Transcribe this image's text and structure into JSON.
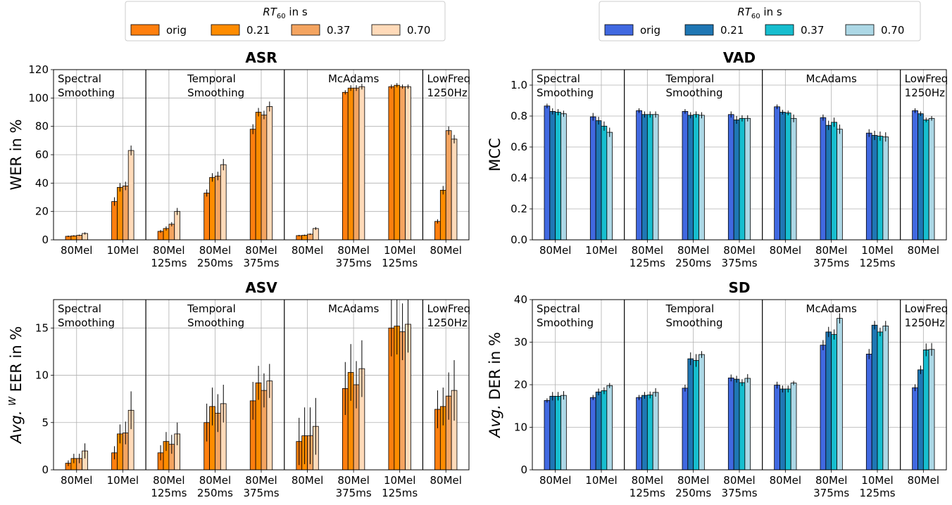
{
  "legends": [
    {
      "title": "RT60 in s",
      "title_main": "RT",
      "title_sub": "60",
      "title_rest": " in s",
      "labels": [
        "orig",
        "0.21",
        "0.37",
        "0.70"
      ],
      "colors": [
        "#ff7f0e",
        "#ff8c00",
        "#f4a460",
        "#ffdab9"
      ]
    },
    {
      "title": "RT60 in s",
      "title_main": "RT",
      "title_sub": "60",
      "title_rest": " in s",
      "labels": [
        "orig",
        "0.21",
        "0.37",
        "0.70"
      ],
      "colors": [
        "#4169e1",
        "#1f77b4",
        "#17becf",
        "#add8e6"
      ]
    }
  ],
  "categories": [
    [
      "80Mel"
    ],
    [
      "10Mel"
    ],
    [
      "80Mel",
      "125ms"
    ],
    [
      "80Mel",
      "250ms"
    ],
    [
      "80Mel",
      "375ms"
    ],
    [
      "80Mel"
    ],
    [
      "80Mel",
      "375ms"
    ],
    [
      "10Mel",
      "125ms"
    ],
    [
      "80Mel"
    ]
  ],
  "groups": [
    {
      "lines": [
        "Spectral",
        "Smoothing"
      ],
      "start": 0,
      "end": 1
    },
    {
      "lines": [
        "Temporal",
        "Smoothing"
      ],
      "start": 2,
      "end": 4
    },
    {
      "lines": [
        "McAdams"
      ],
      "start": 5,
      "end": 7
    },
    {
      "lines": [
        "LowFreq",
        "1250Hz"
      ],
      "start": 8,
      "end": 8
    }
  ],
  "chart_data": [
    {
      "type": "bar",
      "title": "ASR",
      "ylabel": "WER in %",
      "ylim": [
        0,
        120
      ],
      "yticks": [
        0,
        20,
        40,
        60,
        80,
        100,
        120
      ],
      "palette": 0,
      "grid": true,
      "series": [
        {
          "name": "orig",
          "values": [
            2.5,
            27,
            6,
            33,
            78,
            3,
            104,
            108,
            13
          ],
          "err": [
            0.5,
            3,
            1,
            2.5,
            3.5,
            0.5,
            1.5,
            1.5,
            1.5
          ]
        },
        {
          "name": "0.21",
          "values": [
            2.8,
            37,
            8,
            44,
            90,
            3.2,
            107,
            109,
            35
          ],
          "err": [
            0.5,
            3,
            1.5,
            3,
            3,
            0.5,
            2,
            1.5,
            3
          ]
        },
        {
          "name": "0.37",
          "values": [
            3.2,
            38,
            11,
            45,
            88,
            4,
            107,
            108,
            77
          ],
          "err": [
            0.5,
            3,
            1.5,
            3,
            3,
            0.5,
            2,
            1.5,
            3
          ]
        },
        {
          "name": "0.70",
          "values": [
            4.5,
            63,
            20,
            53,
            94,
            8,
            108,
            108,
            71
          ],
          "err": [
            0.8,
            3.5,
            2.5,
            4,
            3.5,
            1,
            2,
            1.5,
            3
          ]
        }
      ]
    },
    {
      "type": "bar",
      "title": "VAD",
      "ylabel": "MCC",
      "ylim": [
        0,
        1.1
      ],
      "yticks": [
        0.0,
        0.2,
        0.4,
        0.6,
        0.8,
        1.0
      ],
      "tick_decimals": 1,
      "palette": 1,
      "grid": true,
      "series": [
        {
          "name": "orig",
          "values": [
            0.865,
            0.795,
            0.835,
            0.83,
            0.81,
            0.86,
            0.79,
            0.69,
            0.835
          ],
          "err": [
            0.015,
            0.025,
            0.015,
            0.015,
            0.02,
            0.015,
            0.02,
            0.025,
            0.015
          ]
        },
        {
          "name": "0.21",
          "values": [
            0.83,
            0.77,
            0.81,
            0.805,
            0.775,
            0.825,
            0.74,
            0.675,
            0.815
          ],
          "err": [
            0.02,
            0.025,
            0.02,
            0.02,
            0.025,
            0.015,
            0.03,
            0.03,
            0.015
          ]
        },
        {
          "name": "0.37",
          "values": [
            0.825,
            0.735,
            0.81,
            0.81,
            0.785,
            0.82,
            0.76,
            0.67,
            0.775
          ],
          "err": [
            0.02,
            0.03,
            0.02,
            0.02,
            0.02,
            0.015,
            0.03,
            0.03,
            0.015
          ]
        },
        {
          "name": "0.70",
          "values": [
            0.815,
            0.695,
            0.81,
            0.805,
            0.785,
            0.785,
            0.715,
            0.665,
            0.785
          ],
          "err": [
            0.02,
            0.03,
            0.02,
            0.02,
            0.02,
            0.025,
            0.03,
            0.03,
            0.015
          ]
        }
      ]
    },
    {
      "type": "bar",
      "title": "ASV",
      "ylabel": "Avg. W EER in %",
      "ylabel_parts": [
        "Avg.",
        "W",
        " EER in %"
      ],
      "ylim": [
        0,
        18
      ],
      "yticks": [
        0,
        5,
        10,
        15
      ],
      "palette": 0,
      "grid": true,
      "series": [
        {
          "name": "orig",
          "values": [
            0.7,
            1.8,
            1.8,
            5.0,
            7.3,
            3.0,
            8.6,
            15.0,
            6.4
          ],
          "err": [
            0.3,
            0.7,
            0.8,
            2.0,
            2.0,
            2.5,
            2.8,
            3.0,
            2.0
          ]
        },
        {
          "name": "0.21",
          "values": [
            1.2,
            3.8,
            3.0,
            6.7,
            9.2,
            3.6,
            10.3,
            15.2,
            6.7
          ],
          "err": [
            0.5,
            1.0,
            1.0,
            2.0,
            1.8,
            3.0,
            3.0,
            3.0,
            2.0
          ]
        },
        {
          "name": "0.37",
          "values": [
            1.2,
            3.9,
            2.7,
            6.0,
            8.4,
            3.6,
            9.0,
            14.6,
            7.8
          ],
          "err": [
            0.5,
            1.2,
            1.0,
            2.0,
            1.8,
            3.0,
            2.5,
            3.0,
            2.5
          ]
        },
        {
          "name": "0.70",
          "values": [
            2.0,
            6.3,
            3.8,
            7.0,
            9.4,
            4.6,
            10.7,
            15.4,
            8.4
          ],
          "err": [
            0.8,
            2.0,
            1.2,
            2.0,
            1.8,
            3.0,
            3.0,
            3.0,
            3.2
          ]
        }
      ]
    },
    {
      "type": "bar",
      "title": "SD",
      "ylabel": "Avg. DER in %",
      "ylabel_parts": [
        "Avg.",
        "",
        " DER in %"
      ],
      "ylim": [
        0,
        40
      ],
      "yticks": [
        0,
        10,
        20,
        30,
        40
      ],
      "palette": 1,
      "grid": true,
      "series": [
        {
          "name": "orig",
          "values": [
            16.3,
            17.0,
            17.0,
            19.2,
            21.6,
            19.9,
            29.3,
            27.2,
            19.3
          ],
          "err": [
            0.5,
            0.6,
            0.6,
            0.8,
            0.8,
            0.8,
            1.2,
            1.2,
            0.8
          ]
        },
        {
          "name": "0.21",
          "values": [
            17.3,
            18.3,
            17.5,
            26.1,
            21.3,
            19.0,
            32.4,
            34.0,
            23.5
          ],
          "err": [
            1.0,
            0.8,
            0.8,
            1.5,
            0.8,
            0.8,
            1.2,
            1.0,
            1.0
          ]
        },
        {
          "name": "0.37",
          "values": [
            17.3,
            18.6,
            17.6,
            25.7,
            20.5,
            19.0,
            31.8,
            32.4,
            28.2
          ],
          "err": [
            1.0,
            0.8,
            0.8,
            1.5,
            0.8,
            0.8,
            1.2,
            1.0,
            1.5
          ]
        },
        {
          "name": "0.70",
          "values": [
            17.5,
            19.8,
            18.2,
            27.1,
            21.5,
            20.4,
            35.6,
            33.8,
            28.3
          ],
          "err": [
            1.0,
            0.6,
            1.0,
            0.8,
            1.0,
            0.5,
            1.2,
            1.2,
            1.5
          ]
        }
      ]
    }
  ]
}
